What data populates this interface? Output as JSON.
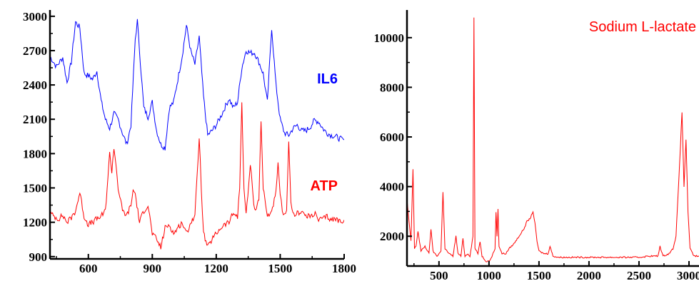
{
  "chart_data": [
    {
      "type": "line",
      "xlim": [
        420,
        1800
      ],
      "ylim": [
        880,
        3030
      ],
      "x_ticks": [
        600,
        900,
        1200,
        1500,
        1800
      ],
      "y_ticks": [
        900,
        1200,
        1500,
        1800,
        2100,
        2400,
        2700,
        3000
      ],
      "series": [
        {
          "name": "IL6",
          "color": "#0000ff",
          "x": [
            420,
            450,
            480,
            500,
            520,
            540,
            560,
            580,
            600,
            620,
            640,
            660,
            680,
            700,
            720,
            740,
            760,
            780,
            800,
            820,
            830,
            840,
            860,
            880,
            900,
            920,
            940,
            960,
            980,
            1000,
            1020,
            1040,
            1060,
            1080,
            1100,
            1120,
            1140,
            1160,
            1180,
            1200,
            1220,
            1240,
            1260,
            1280,
            1300,
            1320,
            1340,
            1360,
            1380,
            1400,
            1420,
            1440,
            1460,
            1480,
            1500,
            1520,
            1540,
            1560,
            1580,
            1600,
            1620,
            1640,
            1660,
            1680,
            1700,
            1720,
            1740,
            1760,
            1780,
            1800
          ],
          "y": [
            2650,
            2560,
            2640,
            2420,
            2600,
            2950,
            2900,
            2500,
            2480,
            2450,
            2520,
            2260,
            2100,
            2020,
            2150,
            2100,
            1980,
            1880,
            2050,
            2800,
            2960,
            2700,
            2200,
            2120,
            2250,
            2000,
            1880,
            1850,
            2200,
            2250,
            2450,
            2650,
            2920,
            2700,
            2580,
            2820,
            2300,
            1960,
            2000,
            2050,
            2120,
            2200,
            2280,
            2200,
            2250,
            2550,
            2700,
            2680,
            2680,
            2600,
            2500,
            2250,
            2900,
            2400,
            2100,
            1980,
            1960,
            2020,
            2050,
            2000,
            2000,
            2030,
            2090,
            2080,
            2020,
            1980,
            1960,
            1950,
            1930,
            1920
          ]
        },
        {
          "name": "ATP",
          "color": "#ff0000",
          "x": [
            420,
            440,
            460,
            480,
            500,
            520,
            540,
            560,
            580,
            600,
            620,
            640,
            660,
            680,
            700,
            710,
            720,
            730,
            740,
            760,
            780,
            800,
            810,
            820,
            840,
            860,
            880,
            900,
            920,
            940,
            960,
            980,
            1000,
            1020,
            1040,
            1060,
            1080,
            1100,
            1110,
            1120,
            1130,
            1140,
            1160,
            1180,
            1200,
            1220,
            1240,
            1260,
            1280,
            1300,
            1310,
            1320,
            1330,
            1340,
            1360,
            1380,
            1400,
            1410,
            1420,
            1440,
            1460,
            1480,
            1490,
            1500,
            1510,
            1520,
            1530,
            1540,
            1550,
            1560,
            1580,
            1600,
            1620,
            1640,
            1660,
            1680,
            1700,
            1720,
            1740,
            1760,
            1780,
            1800
          ],
          "y": [
            1280,
            1250,
            1230,
            1260,
            1200,
            1240,
            1300,
            1460,
            1250,
            1180,
            1200,
            1230,
            1250,
            1300,
            1800,
            1650,
            1850,
            1700,
            1500,
            1300,
            1260,
            1350,
            1480,
            1450,
            1200,
            1300,
            1350,
            1100,
            1050,
            980,
            1150,
            1180,
            1100,
            1150,
            1200,
            1100,
            1200,
            1250,
            1600,
            1950,
            1500,
            1100,
            980,
            1050,
            1100,
            1150,
            1180,
            1200,
            1280,
            1250,
            1500,
            2250,
            1500,
            1260,
            1700,
            1300,
            1400,
            2100,
            1500,
            1250,
            1300,
            1450,
            1700,
            1450,
            1300,
            1250,
            1280,
            1930,
            1350,
            1260,
            1280,
            1300,
            1250,
            1250,
            1280,
            1220,
            1230,
            1250,
            1220,
            1230,
            1210,
            1220
          ]
        }
      ],
      "labels": [
        {
          "text": "IL6",
          "color": "#0000ff"
        },
        {
          "text": "ATP",
          "color": "#ff0000"
        }
      ]
    },
    {
      "type": "line",
      "title": "Sodium L-lactate",
      "title_color": "#ff0000",
      "xlim": [
        180,
        3100
      ],
      "ylim": [
        800,
        11000
      ],
      "x_ticks": [
        500,
        1000,
        1500,
        2000,
        2500,
        3000
      ],
      "y_ticks": [
        2000,
        4000,
        6000,
        8000,
        10000
      ],
      "series": [
        {
          "color": "#ff0000",
          "x": [
            180,
            200,
            220,
            240,
            255,
            270,
            290,
            320,
            360,
            400,
            420,
            440,
            480,
            520,
            540,
            560,
            600,
            640,
            670,
            690,
            720,
            740,
            760,
            790,
            810,
            840,
            850,
            860,
            890,
            910,
            930,
            970,
            1000,
            1020,
            1040,
            1060,
            1070,
            1080,
            1090,
            1100,
            1130,
            1170,
            1200,
            1250,
            1300,
            1350,
            1380,
            1410,
            1440,
            1460,
            1480,
            1500,
            1550,
            1590,
            1610,
            1640,
            1700,
            1800,
            1900,
            2000,
            2100,
            2200,
            2300,
            2400,
            2500,
            2600,
            2690,
            2710,
            2740,
            2800,
            2840,
            2870,
            2900,
            2930,
            2950,
            2970,
            2990,
            3010,
            3050,
            3100
          ],
          "y": [
            3500,
            2600,
            1800,
            4700,
            1500,
            1600,
            2200,
            1400,
            1600,
            1300,
            2300,
            1400,
            1200,
            1400,
            3800,
            1500,
            1300,
            1200,
            2000,
            1300,
            1200,
            1900,
            1200,
            1300,
            1200,
            2000,
            10800,
            1500,
            1300,
            1800,
            1200,
            1000,
            1000,
            1100,
            1300,
            1500,
            3000,
            2000,
            3100,
            1600,
            1300,
            1300,
            1500,
            1700,
            2000,
            2300,
            2600,
            2700,
            3000,
            2500,
            1800,
            1400,
            1300,
            1300,
            1600,
            1200,
            1150,
            1150,
            1150,
            1150,
            1150,
            1150,
            1150,
            1150,
            1150,
            1200,
            1200,
            1600,
            1200,
            1300,
            1500,
            2000,
            4400,
            7000,
            4000,
            5900,
            3000,
            1500,
            1200,
            1200
          ]
        }
      ]
    }
  ]
}
